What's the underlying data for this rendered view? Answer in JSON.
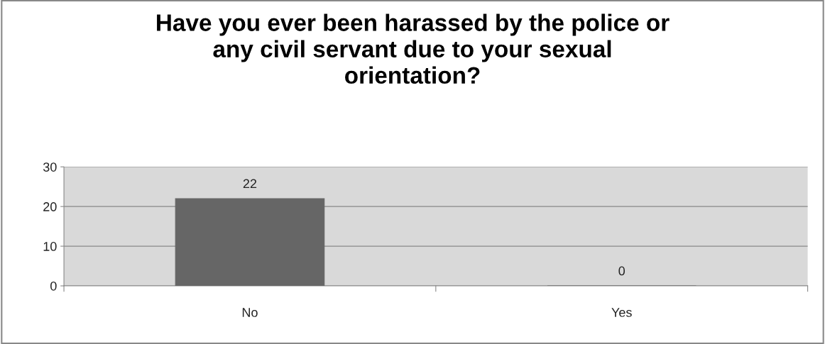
{
  "chart_data": {
    "type": "bar",
    "title": "Have you ever been harassed by the police or\nany civil servant due to your sexual\norientation?",
    "categories": [
      "No",
      "Yes"
    ],
    "values": [
      22,
      0
    ],
    "color": "#666666",
    "ylim": [
      0,
      30
    ],
    "yticks": [
      0,
      10,
      20,
      30
    ],
    "grid": "y",
    "data_labels": true
  }
}
